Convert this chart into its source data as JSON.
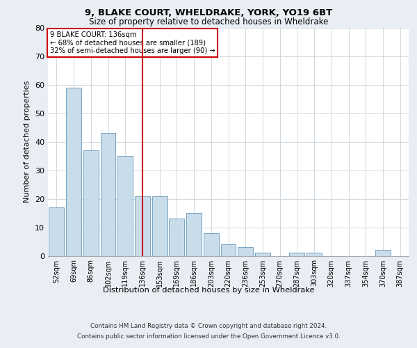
{
  "title1": "9, BLAKE COURT, WHELDRAKE, YORK, YO19 6BT",
  "title2": "Size of property relative to detached houses in Wheldrake",
  "xlabel": "Distribution of detached houses by size in Wheldrake",
  "ylabel": "Number of detached properties",
  "bar_color": "#c9dcea",
  "bar_edge_color": "#6699bb",
  "categories": [
    "52sqm",
    "69sqm",
    "86sqm",
    "102sqm",
    "119sqm",
    "136sqm",
    "153sqm",
    "169sqm",
    "186sqm",
    "203sqm",
    "220sqm",
    "236sqm",
    "253sqm",
    "270sqm",
    "287sqm",
    "303sqm",
    "320sqm",
    "337sqm",
    "354sqm",
    "370sqm",
    "387sqm"
  ],
  "values": [
    17,
    59,
    37,
    43,
    35,
    21,
    21,
    13,
    15,
    8,
    4,
    3,
    1,
    0,
    1,
    1,
    0,
    0,
    0,
    2,
    0
  ],
  "vline_x": 5,
  "vline_color": "#cc0000",
  "annotation_text": "9 BLAKE COURT: 136sqm\n← 68% of detached houses are smaller (189)\n32% of semi-detached houses are larger (90) →",
  "annotation_box_color": "#cc0000",
  "ylim": [
    0,
    80
  ],
  "yticks": [
    0,
    10,
    20,
    30,
    40,
    50,
    60,
    70,
    80
  ],
  "footer1": "Contains HM Land Registry data © Crown copyright and database right 2024.",
  "footer2": "Contains public sector information licensed under the Open Government Licence v3.0.",
  "background_color": "#e8eef4",
  "plot_background": "#ffffff",
  "grid_color": "#d0d8e0"
}
